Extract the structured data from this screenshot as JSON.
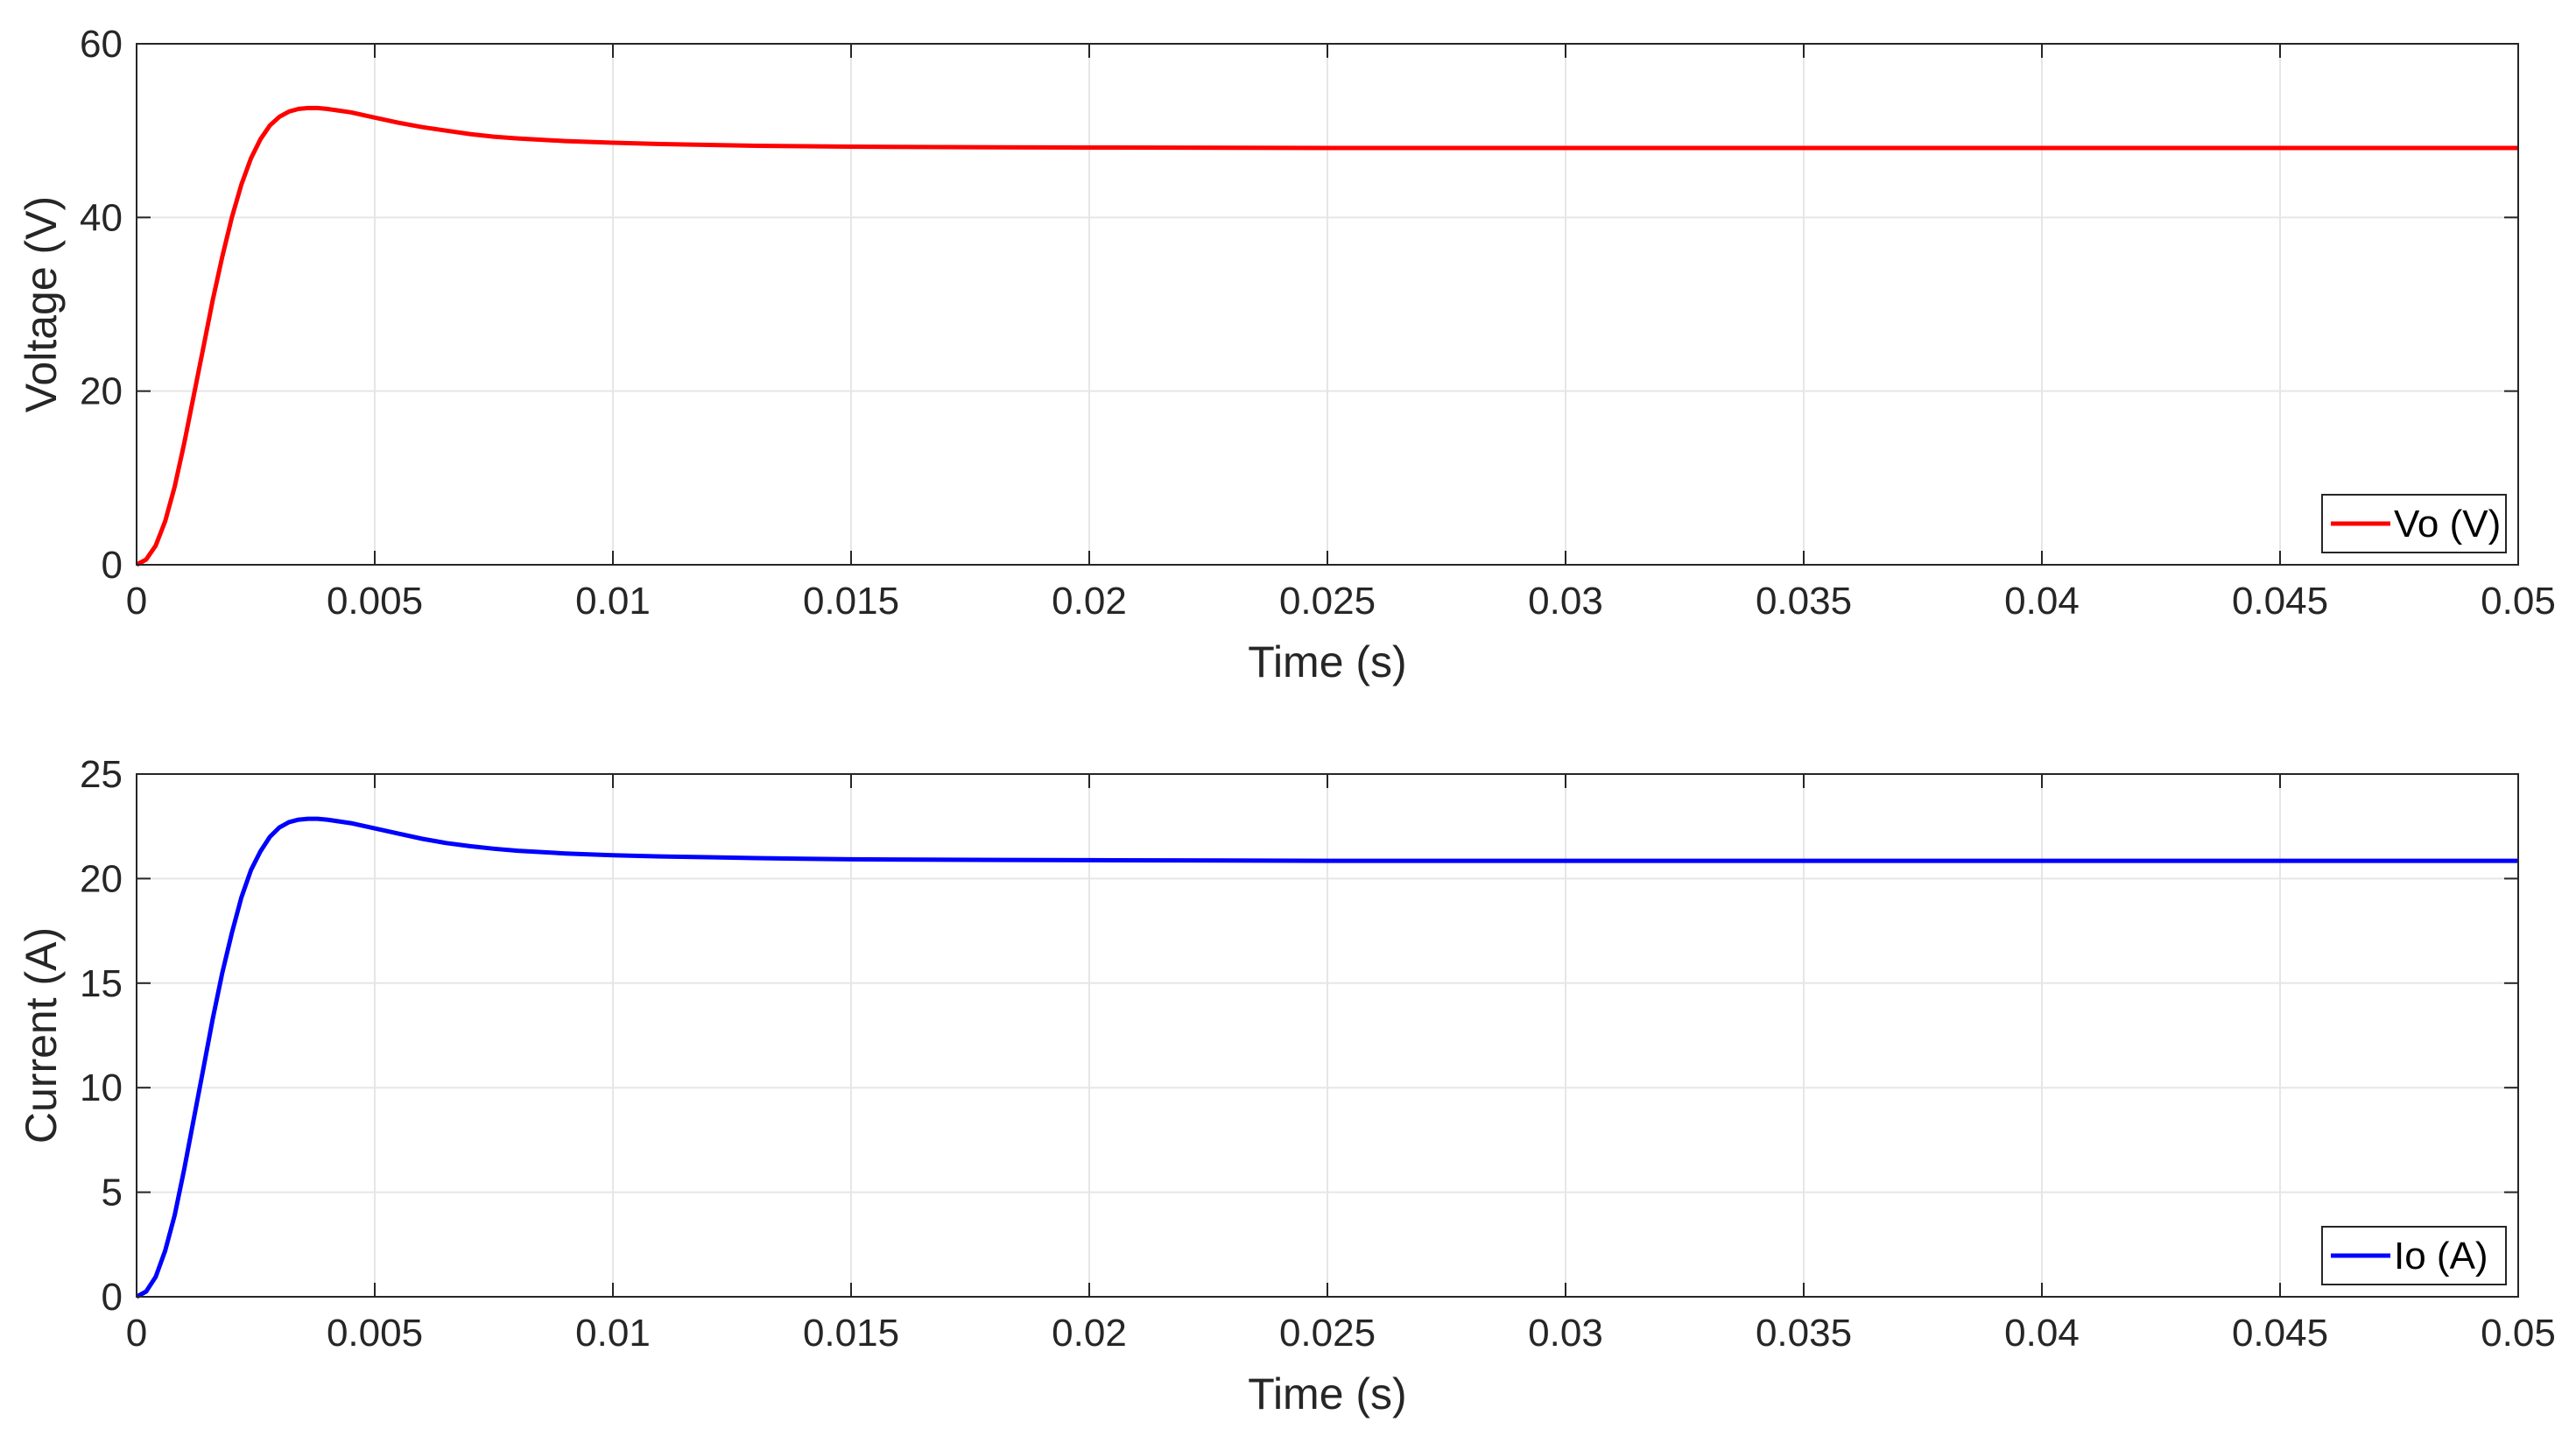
{
  "chart_data": [
    {
      "type": "line",
      "xlabel": "Time (s)",
      "ylabel": "Voltage (V)",
      "xlim": [
        0,
        0.05
      ],
      "ylim": [
        0,
        60
      ],
      "xticks": [
        0,
        0.005,
        0.01,
        0.015,
        0.02,
        0.025,
        0.03,
        0.035,
        0.04,
        0.045,
        0.05
      ],
      "xtick_labels": [
        "0",
        "0.005",
        "0.01",
        "0.015",
        "0.02",
        "0.025",
        "0.03",
        "0.035",
        "0.04",
        "0.045",
        "0.05"
      ],
      "yticks": [
        0,
        20,
        40,
        60
      ],
      "ytick_labels": [
        "0",
        "20",
        "40",
        "60"
      ],
      "grid": true,
      "legend_position": "bottom-right",
      "series": [
        {
          "name": "Vo (V)",
          "color": "#ff0000",
          "x": [
            0,
            0.0002,
            0.0004,
            0.0006,
            0.0008,
            0.001,
            0.0012,
            0.0014,
            0.0016,
            0.0018,
            0.002,
            0.0022,
            0.0024,
            0.0026,
            0.0028,
            0.003,
            0.0032,
            0.0034,
            0.0036,
            0.0038,
            0.004,
            0.0045,
            0.005,
            0.0055,
            0.006,
            0.0065,
            0.007,
            0.0075,
            0.008,
            0.009,
            0.01,
            0.011,
            0.012,
            0.013,
            0.014,
            0.015,
            0.017,
            0.02,
            0.025,
            0.03,
            0.035,
            0.04,
            0.045,
            0.05
          ],
          "y": [
            0,
            0.6,
            2.2,
            5.0,
            9.0,
            14.0,
            19.5,
            25.0,
            30.5,
            35.5,
            40.0,
            43.8,
            46.8,
            49.0,
            50.6,
            51.6,
            52.2,
            52.5,
            52.6,
            52.6,
            52.5,
            52.1,
            51.5,
            50.9,
            50.4,
            50.0,
            49.6,
            49.3,
            49.1,
            48.8,
            48.6,
            48.45,
            48.35,
            48.25,
            48.2,
            48.15,
            48.1,
            48.05,
            48.0,
            48.0,
            48.0,
            48.0,
            48.0,
            48.0
          ]
        }
      ]
    },
    {
      "type": "line",
      "xlabel": "Time (s)",
      "ylabel": "Current (A)",
      "xlim": [
        0,
        0.05
      ],
      "ylim": [
        0,
        25
      ],
      "xticks": [
        0,
        0.005,
        0.01,
        0.015,
        0.02,
        0.025,
        0.03,
        0.035,
        0.04,
        0.045,
        0.05
      ],
      "xtick_labels": [
        "0",
        "0.005",
        "0.01",
        "0.015",
        "0.02",
        "0.025",
        "0.03",
        "0.035",
        "0.04",
        "0.045",
        "0.05"
      ],
      "yticks": [
        0,
        5,
        10,
        15,
        20,
        25
      ],
      "ytick_labels": [
        "0",
        "5",
        "10",
        "15",
        "20",
        "25"
      ],
      "grid": true,
      "legend_position": "bottom-right",
      "series": [
        {
          "name": "Io (A)",
          "color": "#0000ff",
          "x": [
            0,
            0.0002,
            0.0004,
            0.0006,
            0.0008,
            0.001,
            0.0012,
            0.0014,
            0.0016,
            0.0018,
            0.002,
            0.0022,
            0.0024,
            0.0026,
            0.0028,
            0.003,
            0.0032,
            0.0034,
            0.0036,
            0.0038,
            0.004,
            0.0045,
            0.005,
            0.0055,
            0.006,
            0.0065,
            0.007,
            0.0075,
            0.008,
            0.009,
            0.01,
            0.011,
            0.012,
            0.013,
            0.014,
            0.015,
            0.017,
            0.02,
            0.025,
            0.03,
            0.035,
            0.04,
            0.045,
            0.05
          ],
          "y": [
            0,
            0.25,
            0.95,
            2.2,
            3.9,
            6.1,
            8.5,
            10.9,
            13.3,
            15.5,
            17.4,
            19.1,
            20.4,
            21.3,
            22.0,
            22.45,
            22.7,
            22.82,
            22.86,
            22.86,
            22.82,
            22.65,
            22.4,
            22.15,
            21.9,
            21.7,
            21.55,
            21.43,
            21.33,
            21.2,
            21.12,
            21.06,
            21.02,
            20.98,
            20.95,
            20.92,
            20.9,
            20.88,
            20.85,
            20.85,
            20.85,
            20.85,
            20.85,
            20.85
          ]
        }
      ]
    }
  ]
}
